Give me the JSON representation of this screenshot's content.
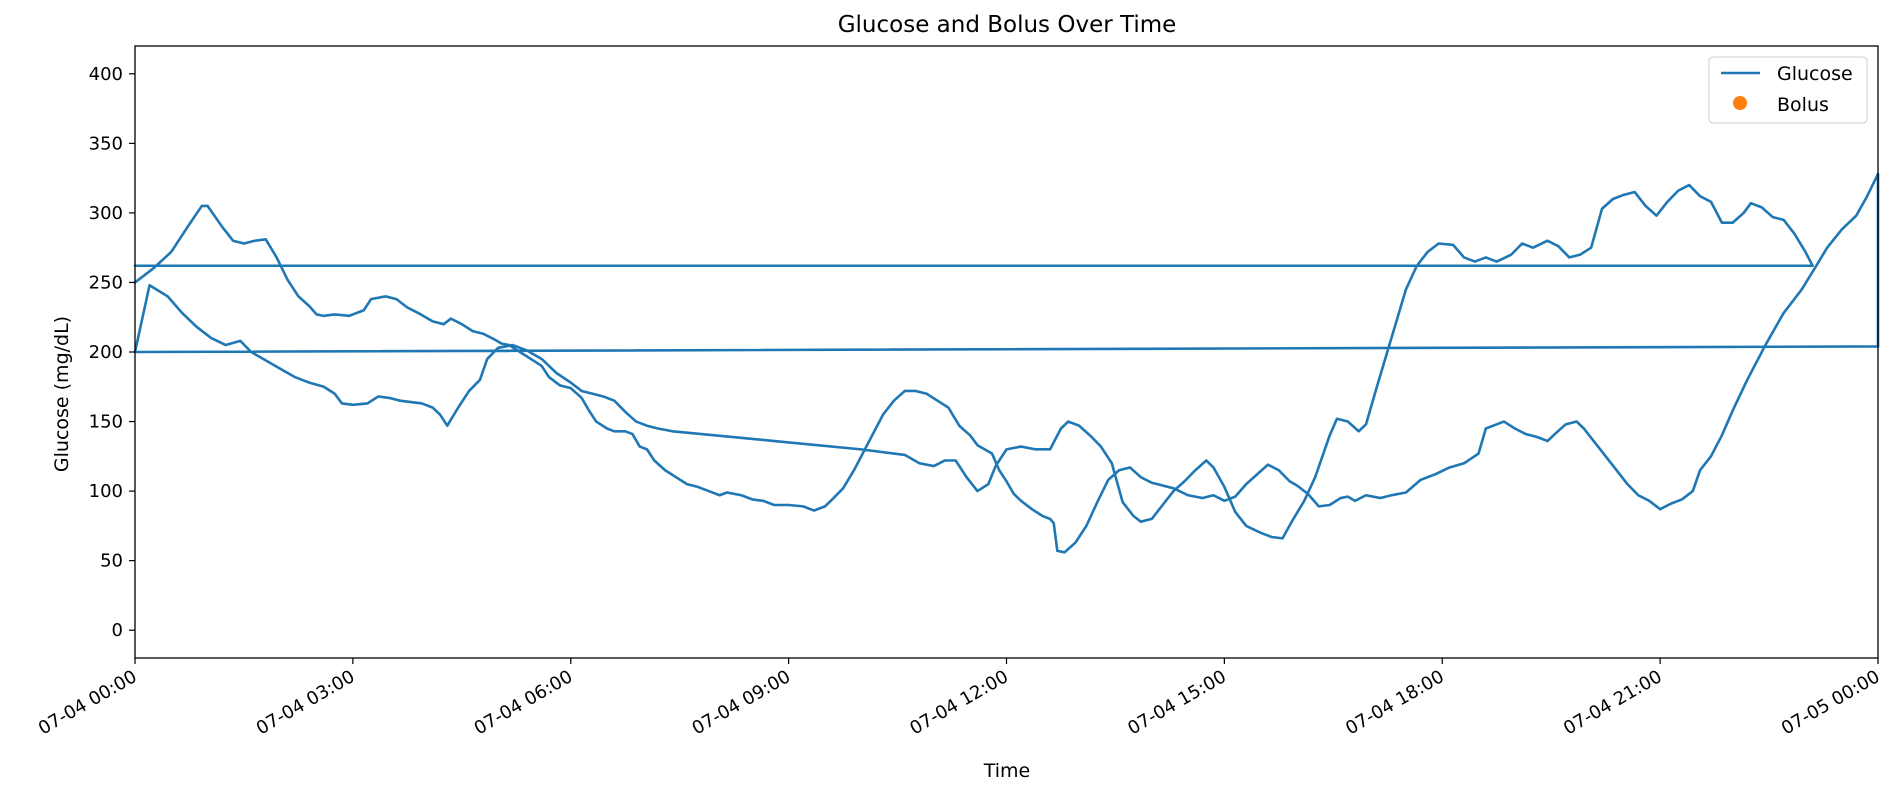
{
  "chart_data": {
    "type": "line",
    "title": "Glucose and Bolus Over Time",
    "xlabel": "Time",
    "ylabel": "Glucose (mg/dL)",
    "xlim": [
      "07-04 00:00",
      "07-05 00:00"
    ],
    "ylim": [
      -20,
      420
    ],
    "x_unit": "hours since 07-04 00:00",
    "x_ticks": [
      0,
      3,
      6,
      9,
      12,
      15,
      18,
      21,
      24
    ],
    "x_tick_labels": [
      "07-04 00:00",
      "07-04 03:00",
      "07-04 06:00",
      "07-04 09:00",
      "07-04 12:00",
      "07-04 15:00",
      "07-04 18:00",
      "07-04 21:00",
      "07-05 00:00"
    ],
    "y_ticks": [
      0,
      50,
      100,
      150,
      200,
      250,
      300,
      350,
      400
    ],
    "y_tick_labels": [
      "0",
      "50",
      "100",
      "150",
      "200",
      "250",
      "300",
      "350",
      "400"
    ],
    "grid": false,
    "legend_position": "top-right",
    "series": [
      {
        "name": "Glucose",
        "style": "line",
        "color": "#1f77b4",
        "points": [
          [
            0,
            250
          ],
          [
            0.25,
            260
          ],
          [
            0.5,
            272
          ],
          [
            0.75,
            292
          ],
          [
            0.92,
            305
          ],
          [
            1.0,
            305
          ],
          [
            1.2,
            290
          ],
          [
            1.35,
            280
          ],
          [
            1.5,
            278
          ],
          [
            1.65,
            280
          ],
          [
            1.8,
            281
          ],
          [
            1.95,
            268
          ],
          [
            2.1,
            252
          ],
          [
            2.25,
            240
          ],
          [
            2.4,
            233
          ],
          [
            2.5,
            227
          ],
          [
            2.6,
            226
          ],
          [
            2.75,
            227
          ],
          [
            2.95,
            226
          ],
          [
            3.15,
            230
          ],
          [
            3.25,
            238
          ],
          [
            3.45,
            240
          ],
          [
            3.6,
            238
          ],
          [
            3.75,
            232
          ],
          [
            3.9,
            228
          ],
          [
            4.1,
            222
          ],
          [
            4.25,
            220
          ],
          [
            4.35,
            224
          ],
          [
            4.5,
            220
          ],
          [
            4.65,
            215
          ],
          [
            4.8,
            213
          ],
          [
            4.95,
            209
          ],
          [
            5.05,
            206
          ],
          [
            5.15,
            205
          ],
          [
            5.3,
            200
          ],
          [
            5.45,
            195
          ],
          [
            5.6,
            190
          ],
          [
            5.7,
            182
          ],
          [
            5.85,
            176
          ],
          [
            6.0,
            174
          ],
          [
            6.15,
            167
          ],
          [
            6.25,
            158
          ],
          [
            6.35,
            150
          ],
          [
            6.5,
            145
          ],
          [
            6.6,
            143
          ],
          [
            6.75,
            143
          ],
          [
            6.85,
            141
          ],
          [
            6.95,
            132
          ],
          [
            7.05,
            130
          ],
          [
            7.15,
            122
          ],
          [
            7.3,
            115
          ],
          [
            7.45,
            110
          ],
          [
            7.6,
            105
          ],
          [
            7.75,
            103
          ],
          [
            7.9,
            100
          ],
          [
            8.05,
            97
          ],
          [
            8.15,
            99
          ],
          [
            8.35,
            97
          ],
          [
            8.5,
            94
          ],
          [
            8.65,
            93
          ],
          [
            8.8,
            90
          ],
          [
            9.0,
            90
          ],
          [
            9.2,
            89
          ],
          [
            9.35,
            86
          ],
          [
            9.5,
            89
          ],
          [
            9.6,
            94
          ],
          [
            9.75,
            102
          ],
          [
            9.9,
            115
          ],
          [
            10.0,
            125
          ],
          [
            10.15,
            140
          ],
          [
            10.3,
            155
          ],
          [
            10.45,
            165
          ],
          [
            10.6,
            172
          ],
          [
            10.75,
            172
          ],
          [
            10.9,
            170
          ],
          [
            11.05,
            165
          ],
          [
            11.2,
            160
          ],
          [
            11.35,
            147
          ],
          [
            11.5,
            140
          ],
          [
            11.6,
            133
          ],
          [
            11.8,
            127
          ],
          [
            11.9,
            115
          ],
          [
            12.0,
            107
          ],
          [
            12.1,
            98
          ],
          [
            12.2,
            93
          ],
          [
            12.35,
            87
          ],
          [
            12.5,
            82
          ],
          [
            12.6,
            80
          ],
          [
            12.65,
            77
          ],
          [
            12.7,
            57
          ],
          [
            12.8,
            56
          ],
          [
            12.95,
            63
          ],
          [
            13.1,
            75
          ],
          [
            13.25,
            92
          ],
          [
            13.4,
            108
          ],
          [
            13.55,
            115
          ],
          [
            13.7,
            117
          ],
          [
            13.85,
            110
          ],
          [
            14.0,
            106
          ],
          [
            14.15,
            104
          ],
          [
            14.3,
            102
          ],
          [
            14.5,
            97
          ],
          [
            14.7,
            95
          ],
          [
            14.85,
            97
          ],
          [
            15.0,
            93
          ],
          [
            15.15,
            96
          ],
          [
            15.3,
            105
          ],
          [
            15.45,
            112
          ],
          [
            15.6,
            119
          ],
          [
            15.75,
            115
          ],
          [
            15.9,
            107
          ],
          [
            16.0,
            104
          ],
          [
            16.15,
            98
          ],
          [
            16.3,
            89
          ],
          [
            16.45,
            90
          ],
          [
            16.6,
            95
          ],
          [
            16.7,
            96
          ],
          [
            16.8,
            93
          ],
          [
            16.95,
            97
          ],
          [
            17.15,
            95
          ],
          [
            17.3,
            97
          ],
          [
            17.5,
            99
          ],
          [
            17.7,
            108
          ],
          [
            17.9,
            112
          ],
          [
            18.1,
            117
          ],
          [
            18.3,
            120
          ],
          [
            18.5,
            127
          ],
          [
            18.6,
            145
          ],
          [
            18.7,
            147
          ],
          [
            18.85,
            150
          ],
          [
            19.0,
            145
          ],
          [
            19.15,
            141
          ],
          [
            19.3,
            139
          ],
          [
            19.45,
            136
          ],
          [
            19.55,
            141
          ],
          [
            19.7,
            148
          ],
          [
            19.85,
            150
          ],
          [
            19.95,
            145
          ],
          [
            20.1,
            135
          ],
          [
            20.25,
            125
          ],
          [
            20.4,
            115
          ],
          [
            20.55,
            105
          ],
          [
            20.7,
            97
          ],
          [
            20.85,
            93
          ],
          [
            21.0,
            87
          ],
          [
            21.15,
            91
          ],
          [
            21.3,
            94
          ],
          [
            21.45,
            100
          ],
          [
            21.55,
            115
          ],
          [
            21.7,
            125
          ],
          [
            21.85,
            140
          ],
          [
            22.0,
            158
          ],
          [
            22.2,
            180
          ],
          [
            22.45,
            205
          ],
          [
            22.7,
            228
          ],
          [
            22.95,
            245
          ],
          [
            23.15,
            262
          ],
          [
            23.3,
            275
          ],
          [
            23.5,
            288
          ],
          [
            23.7,
            298
          ],
          [
            23.85,
            312
          ],
          [
            24.0,
            328
          ],
          [
            24.0,
            204
          ],
          [
            0,
            200
          ],
          [
            0.2,
            248
          ],
          [
            0.45,
            240
          ],
          [
            0.65,
            228
          ],
          [
            0.85,
            218
          ],
          [
            1.05,
            210
          ],
          [
            1.25,
            205
          ],
          [
            1.45,
            208
          ],
          [
            1.6,
            200
          ],
          [
            1.8,
            194
          ],
          [
            2.0,
            188
          ],
          [
            2.2,
            182
          ],
          [
            2.4,
            178
          ],
          [
            2.6,
            175
          ],
          [
            2.75,
            170
          ],
          [
            2.85,
            163
          ],
          [
            3.0,
            162
          ],
          [
            3.2,
            163
          ],
          [
            3.35,
            168
          ],
          [
            3.5,
            167
          ],
          [
            3.65,
            165
          ],
          [
            3.8,
            164
          ],
          [
            3.95,
            163
          ],
          [
            4.1,
            160
          ],
          [
            4.2,
            155
          ],
          [
            4.3,
            147
          ],
          [
            4.45,
            160
          ],
          [
            4.6,
            172
          ],
          [
            4.75,
            180
          ],
          [
            4.85,
            195
          ],
          [
            5.0,
            203
          ],
          [
            5.2,
            205
          ],
          [
            5.4,
            201
          ],
          [
            5.6,
            195
          ],
          [
            5.8,
            185
          ],
          [
            6.0,
            178
          ],
          [
            6.15,
            172
          ],
          [
            6.3,
            170
          ],
          [
            6.45,
            168
          ],
          [
            6.6,
            165
          ],
          [
            6.75,
            157
          ],
          [
            6.9,
            150
          ],
          [
            7.05,
            147
          ],
          [
            7.2,
            145
          ],
          [
            7.4,
            143
          ],
          [
            8.0,
            140
          ],
          [
            9.0,
            135
          ],
          [
            10.0,
            130
          ],
          [
            10.6,
            126
          ],
          [
            10.8,
            120
          ],
          [
            11.0,
            118
          ],
          [
            11.15,
            122
          ],
          [
            11.3,
            122
          ],
          [
            11.45,
            110
          ],
          [
            11.6,
            100
          ],
          [
            11.75,
            105
          ],
          [
            11.85,
            118
          ],
          [
            12.0,
            130
          ],
          [
            12.2,
            132
          ],
          [
            12.4,
            130
          ],
          [
            12.6,
            130
          ],
          [
            12.75,
            145
          ],
          [
            12.85,
            150
          ],
          [
            13.0,
            147
          ],
          [
            13.15,
            140
          ],
          [
            13.3,
            132
          ],
          [
            13.45,
            120
          ],
          [
            13.6,
            92
          ],
          [
            13.75,
            82
          ],
          [
            13.85,
            78
          ],
          [
            14.0,
            80
          ],
          [
            14.15,
            90
          ],
          [
            14.3,
            100
          ],
          [
            14.45,
            107
          ],
          [
            14.6,
            115
          ],
          [
            14.75,
            122
          ],
          [
            14.85,
            117
          ],
          [
            15.0,
            103
          ],
          [
            15.15,
            85
          ],
          [
            15.3,
            75
          ],
          [
            15.5,
            70
          ],
          [
            15.65,
            67
          ],
          [
            15.8,
            66
          ],
          [
            15.95,
            80
          ],
          [
            16.1,
            93
          ],
          [
            16.25,
            110
          ],
          [
            16.45,
            140
          ],
          [
            16.55,
            152
          ],
          [
            16.7,
            150
          ],
          [
            16.85,
            143
          ],
          [
            16.95,
            148
          ],
          [
            17.1,
            175
          ],
          [
            17.3,
            210
          ],
          [
            17.5,
            245
          ],
          [
            17.65,
            262
          ],
          [
            17.8,
            272
          ],
          [
            17.95,
            278
          ],
          [
            18.15,
            277
          ],
          [
            18.3,
            268
          ],
          [
            18.45,
            265
          ],
          [
            18.6,
            268
          ],
          [
            18.75,
            265
          ],
          [
            18.95,
            270
          ],
          [
            19.1,
            278
          ],
          [
            19.25,
            275
          ],
          [
            19.45,
            280
          ],
          [
            19.6,
            276
          ],
          [
            19.75,
            268
          ],
          [
            19.9,
            270
          ],
          [
            20.05,
            275
          ],
          [
            20.2,
            303
          ],
          [
            20.35,
            310
          ],
          [
            20.5,
            313
          ],
          [
            20.65,
            315
          ],
          [
            20.8,
            305
          ],
          [
            20.95,
            298
          ],
          [
            21.1,
            308
          ],
          [
            21.25,
            316
          ],
          [
            21.4,
            320
          ],
          [
            21.55,
            312
          ],
          [
            21.7,
            308
          ],
          [
            21.85,
            293
          ],
          [
            22.0,
            293
          ],
          [
            22.15,
            300
          ],
          [
            22.25,
            307
          ],
          [
            22.4,
            304
          ],
          [
            22.55,
            297
          ],
          [
            22.7,
            295
          ],
          [
            22.85,
            285
          ],
          [
            23.0,
            272
          ],
          [
            23.1,
            262
          ],
          [
            0,
            262
          ]
        ]
      },
      {
        "name": "Bolus",
        "style": "marker",
        "color": "#ff7f0e",
        "points": []
      }
    ]
  }
}
